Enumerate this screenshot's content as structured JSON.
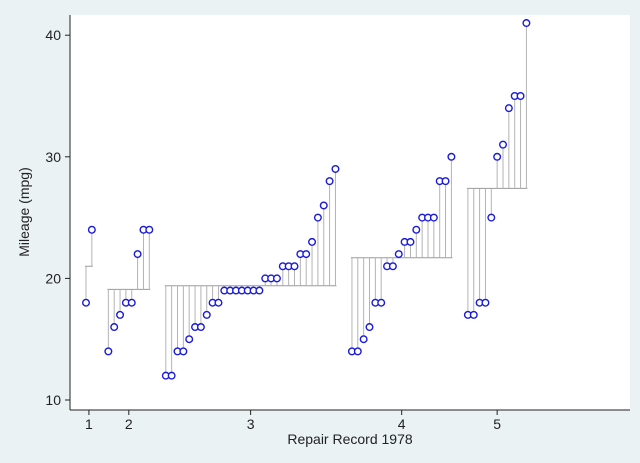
{
  "chart_data": {
    "type": "scatter",
    "xlabel": "Repair Record 1978",
    "ylabel": "Mileage (mpg)",
    "ylim": [
      10,
      41
    ],
    "yticks": [
      10,
      20,
      30,
      40
    ],
    "grid": false,
    "legend": "none",
    "colors": {
      "background": "#eaf2f3",
      "plot_area": "#ffffff",
      "marker": "#1a1adb",
      "stem": "#b3b3b3",
      "mean_line": "#9a9a9a",
      "axis": "#222222"
    },
    "groups": [
      {
        "label": "1",
        "mean": 21.0,
        "values": [
          18,
          24
        ]
      },
      {
        "label": "2",
        "mean": 19.1,
        "values": [
          14,
          16,
          17,
          18,
          18,
          22,
          24,
          24
        ]
      },
      {
        "label": "3",
        "mean": 19.4,
        "values": [
          12,
          12,
          14,
          14,
          15,
          16,
          16,
          17,
          18,
          18,
          19,
          19,
          19,
          19,
          19,
          19,
          19,
          20,
          20,
          20,
          21,
          21,
          21,
          22,
          22,
          23,
          25,
          26,
          28,
          29
        ]
      },
      {
        "label": "4",
        "mean": 21.7,
        "values": [
          14,
          14,
          15,
          16,
          18,
          18,
          21,
          21,
          22,
          23,
          23,
          24,
          25,
          25,
          25,
          28,
          28,
          30
        ]
      },
      {
        "label": "5",
        "mean": 27.4,
        "values": [
          17,
          17,
          18,
          18,
          25,
          30,
          31,
          34,
          35,
          35,
          41
        ]
      }
    ]
  }
}
